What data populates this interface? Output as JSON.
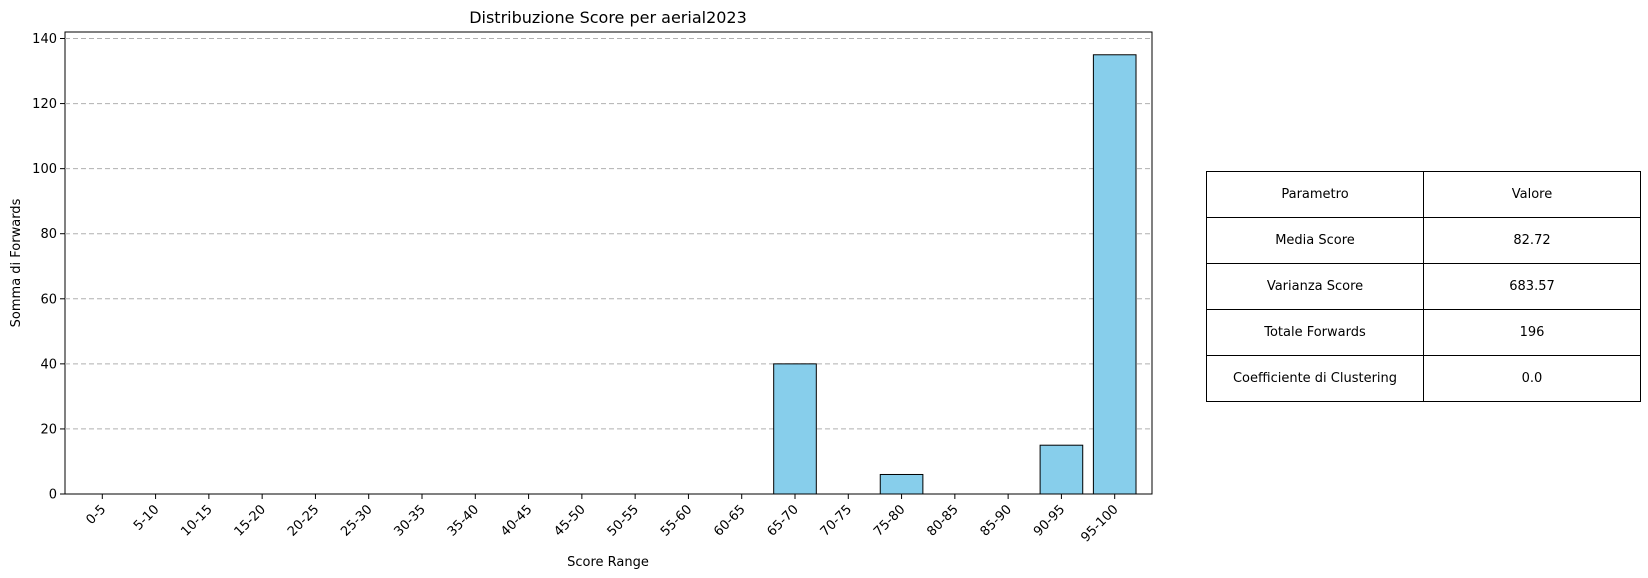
{
  "chart_data": {
    "type": "bar",
    "title": "Distribuzione Score per aerial2023",
    "xlabel": "Score Range",
    "ylabel": "Somma di Forwards",
    "categories": [
      "0-5",
      "5-10",
      "10-15",
      "15-20",
      "20-25",
      "25-30",
      "30-35",
      "35-40",
      "40-45",
      "45-50",
      "50-55",
      "55-60",
      "60-65",
      "65-70",
      "70-75",
      "75-80",
      "80-85",
      "85-90",
      "90-95",
      "95-100"
    ],
    "values": [
      0,
      0,
      0,
      0,
      0,
      0,
      0,
      0,
      0,
      0,
      0,
      0,
      0,
      40,
      0,
      6,
      0,
      0,
      15,
      135
    ],
    "ylim": [
      0,
      142
    ],
    "yticks": [
      0,
      20,
      40,
      60,
      80,
      100,
      120,
      140
    ],
    "grid": "y-dashed",
    "bar_color": "#87CEEB",
    "edge_color": "#000000"
  },
  "stats_table": {
    "header": [
      "Parametro",
      "Valore"
    ],
    "rows": [
      [
        "Media Score",
        "82.72"
      ],
      [
        "Varianza Score",
        "683.57"
      ],
      [
        "Totale Forwards",
        "196"
      ],
      [
        "Coefficiente di Clustering",
        "0.0"
      ]
    ]
  }
}
